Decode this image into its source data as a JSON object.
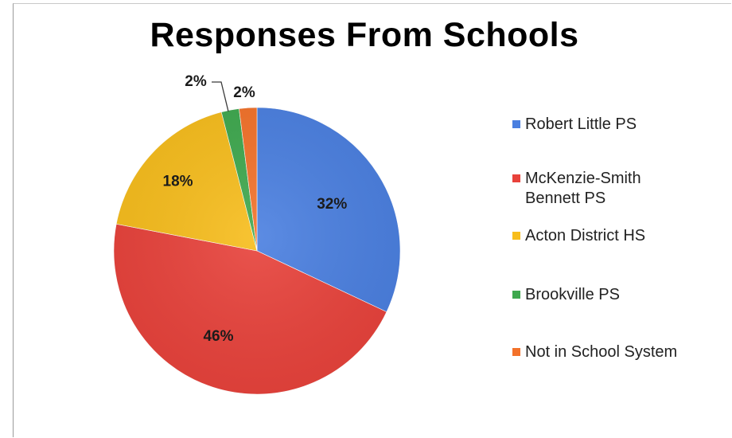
{
  "chart_data": {
    "type": "pie",
    "title": "Responses From Schools",
    "categories": [
      "Robert Little PS",
      "McKenzie-Smith Bennett PS",
      "Acton District HS",
      "Brookville PS",
      "Not in School System"
    ],
    "values": [
      32,
      46,
      18,
      2,
      2
    ],
    "data_labels": [
      "32%",
      "46%",
      "18%",
      "2%",
      "2%"
    ],
    "colors": [
      "#4a7fe0",
      "#e8423b",
      "#f7bd1c",
      "#3ea84e",
      "#f3722a"
    ],
    "legend_position": "right",
    "legend_labels": [
      "Robert Little PS",
      "McKenzie-Smith\nBennett PS",
      "Acton District HS",
      "Brookville PS",
      "Not in School System"
    ],
    "start_angle_deg": 0,
    "direction": "clockwise"
  }
}
